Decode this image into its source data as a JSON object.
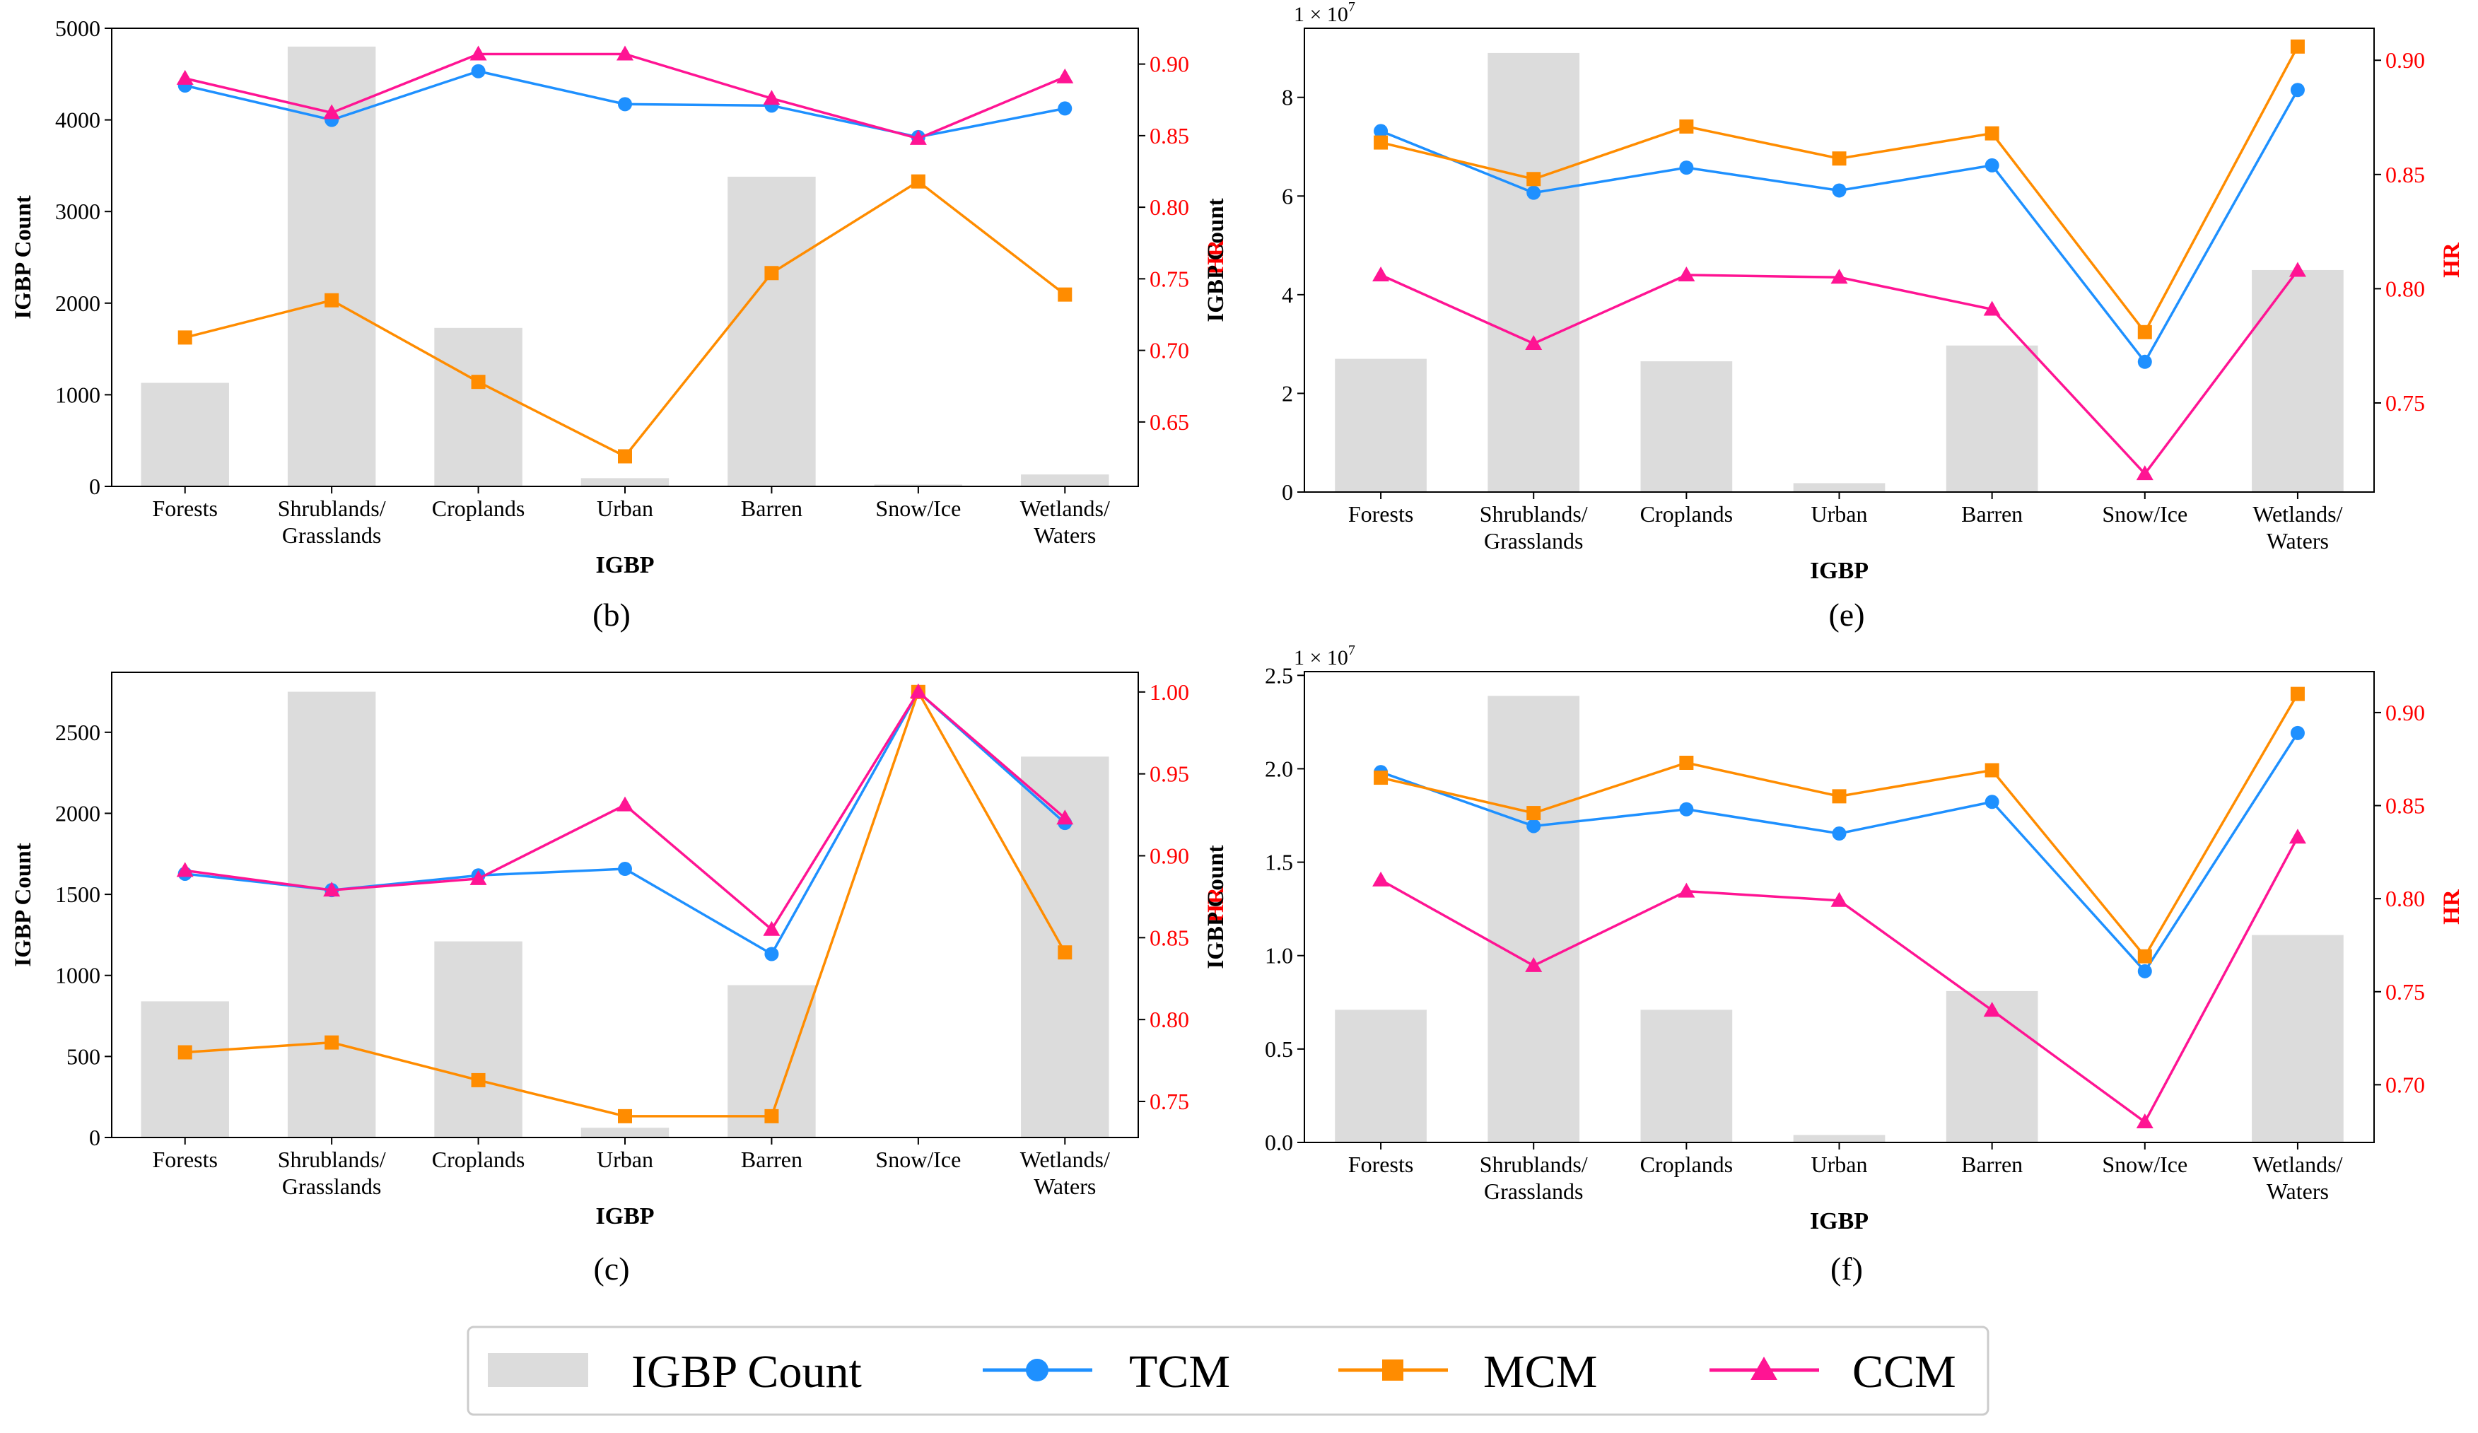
{
  "colors": {
    "bar": "#dcdcdc",
    "tcm": "#1e90ff",
    "mcm": "#ff8c00",
    "ccm": "#ff1493",
    "hr_axis": "#ff0000",
    "axis": "#000000"
  },
  "legend": {
    "items": [
      {
        "key": "bar",
        "label": "IGBP Count",
        "marker": "rect"
      },
      {
        "key": "tcm",
        "label": "TCM",
        "marker": "circle"
      },
      {
        "key": "mcm",
        "label": "MCM",
        "marker": "square"
      },
      {
        "key": "ccm",
        "label": "CCM",
        "marker": "triangle"
      }
    ]
  },
  "chart_data": [
    {
      "panel": "(b)",
      "type": "bar+line",
      "categories": [
        "Forests",
        "Shrublands/\nGrasslands",
        "Croplands",
        "Urban",
        "Barren",
        "Snow/Ice",
        "Wetlands/\nWaters"
      ],
      "xlabel": "IGBP",
      "ylabel_left": "IGBP Count",
      "ylabel_right": "HR",
      "left_multiplier": "",
      "ylim_left": [
        0,
        5000
      ],
      "left_ticks": [
        0,
        1000,
        2000,
        3000,
        4000,
        5000
      ],
      "left_tick_labels": [
        "0",
        "1000",
        "2000",
        "3000",
        "4000",
        "5000"
      ],
      "ylim_right": [
        0.605,
        0.925
      ],
      "right_ticks": [
        0.65,
        0.7,
        0.75,
        0.8,
        0.85,
        0.9
      ],
      "right_tick_labels": [
        "0.65",
        "0.70",
        "0.75",
        "0.80",
        "0.85",
        "0.90"
      ],
      "bars": [
        1130,
        4800,
        1730,
        90,
        3380,
        20,
        130
      ],
      "series": [
        {
          "name": "TCM",
          "key": "tcm",
          "marker": "circle",
          "values": [
            0.885,
            0.861,
            0.895,
            0.872,
            0.871,
            0.849,
            0.869
          ]
        },
        {
          "name": "MCM",
          "key": "mcm",
          "marker": "square",
          "values": [
            0.709,
            0.735,
            0.678,
            0.626,
            0.754,
            0.818,
            0.739
          ]
        },
        {
          "name": "CCM",
          "key": "ccm",
          "marker": "triangle",
          "values": [
            0.89,
            0.866,
            0.907,
            0.907,
            0.876,
            0.848,
            0.891
          ]
        }
      ]
    },
    {
      "panel": "(e)",
      "type": "bar+line",
      "categories": [
        "Forests",
        "Shrublands/\nGrasslands",
        "Croplands",
        "Urban",
        "Barren",
        "Snow/Ice",
        "Wetlands/\nWaters"
      ],
      "xlabel": "IGBP",
      "ylabel_left": "IGBP Count",
      "ylabel_right": "HR",
      "left_multiplier": "1 × 10",
      "left_multiplier_exp": "7",
      "ylim_left": [
        0,
        9.4
      ],
      "left_ticks": [
        0,
        2,
        4,
        6,
        8
      ],
      "left_tick_labels": [
        "0",
        "2",
        "4",
        "6",
        "8"
      ],
      "ylim_right": [
        0.711,
        0.914
      ],
      "right_ticks": [
        0.75,
        0.8,
        0.85,
        0.9
      ],
      "right_tick_labels": [
        "0.75",
        "0.80",
        "0.85",
        "0.90"
      ],
      "bars": [
        2.7,
        8.9,
        2.65,
        0.18,
        2.97,
        0.0,
        4.5
      ],
      "series": [
        {
          "name": "TCM",
          "key": "tcm",
          "marker": "circle",
          "values": [
            0.869,
            0.842,
            0.853,
            0.843,
            0.854,
            0.768,
            0.887
          ]
        },
        {
          "name": "MCM",
          "key": "mcm",
          "marker": "square",
          "values": [
            0.864,
            0.848,
            0.871,
            0.857,
            0.868,
            0.781,
            0.906
          ]
        },
        {
          "name": "CCM",
          "key": "ccm",
          "marker": "triangle",
          "values": [
            0.806,
            0.776,
            0.806,
            0.805,
            0.791,
            0.719,
            0.808
          ]
        }
      ]
    },
    {
      "panel": "(c)",
      "type": "bar+line",
      "categories": [
        "Forests",
        "Shrublands/\nGrasslands",
        "Croplands",
        "Urban",
        "Barren",
        "Snow/Ice",
        "Wetlands/\nWaters"
      ],
      "xlabel": "IGBP",
      "ylabel_left": "IGBP Count",
      "ylabel_right": "HR",
      "left_multiplier": "",
      "ylim_left": [
        0,
        2870
      ],
      "left_ticks": [
        0,
        500,
        1000,
        1500,
        2000,
        2500
      ],
      "left_tick_labels": [
        "0",
        "500",
        "1000",
        "1500",
        "2000",
        "2500"
      ],
      "ylim_right": [
        0.728,
        1.012
      ],
      "right_ticks": [
        0.75,
        0.8,
        0.85,
        0.9,
        0.95,
        1.0
      ],
      "right_tick_labels": [
        "0.75",
        "0.80",
        "0.85",
        "0.90",
        "0.95",
        "1.00"
      ],
      "bars": [
        840,
        2750,
        1210,
        60,
        940,
        0,
        2350
      ],
      "series": [
        {
          "name": "TCM",
          "key": "tcm",
          "marker": "circle",
          "values": [
            0.889,
            0.879,
            0.888,
            0.892,
            0.84,
            1.0,
            0.92
          ]
        },
        {
          "name": "MCM",
          "key": "mcm",
          "marker": "square",
          "values": [
            0.78,
            0.786,
            0.763,
            0.741,
            0.741,
            1.0,
            0.841
          ]
        },
        {
          "name": "CCM",
          "key": "ccm",
          "marker": "triangle",
          "values": [
            0.891,
            0.879,
            0.886,
            0.931,
            0.855,
            1.0,
            0.923
          ]
        }
      ]
    },
    {
      "panel": "(f)",
      "type": "bar+line",
      "categories": [
        "Forests",
        "Shrublands/\nGrasslands",
        "Croplands",
        "Urban",
        "Barren",
        "Snow/Ice",
        "Wetlands/\nWaters"
      ],
      "xlabel": "IGBP",
      "ylabel_left": "IGBP Count",
      "ylabel_right": "HR",
      "left_multiplier": "1 × 10",
      "left_multiplier_exp": "7",
      "ylim_left": [
        0,
        2.52
      ],
      "left_ticks": [
        0.0,
        0.5,
        1.0,
        1.5,
        2.0,
        2.5
      ],
      "left_tick_labels": [
        "0.0",
        "0.5",
        "1.0",
        "1.5",
        "2.0",
        "2.5"
      ],
      "ylim_right": [
        0.669,
        0.922
      ],
      "right_ticks": [
        0.7,
        0.75,
        0.8,
        0.85,
        0.9
      ],
      "right_tick_labels": [
        "0.70",
        "0.75",
        "0.80",
        "0.85",
        "0.90"
      ],
      "bars": [
        0.71,
        2.39,
        0.71,
        0.04,
        0.81,
        0.0,
        1.11
      ],
      "series": [
        {
          "name": "TCM",
          "key": "tcm",
          "marker": "circle",
          "values": [
            0.868,
            0.839,
            0.848,
            0.835,
            0.852,
            0.761,
            0.889
          ]
        },
        {
          "name": "MCM",
          "key": "mcm",
          "marker": "square",
          "values": [
            0.865,
            0.846,
            0.873,
            0.855,
            0.869,
            0.769,
            0.91
          ]
        },
        {
          "name": "CCM",
          "key": "ccm",
          "marker": "triangle",
          "values": [
            0.81,
            0.764,
            0.804,
            0.799,
            0.74,
            0.68,
            0.833
          ]
        }
      ]
    }
  ]
}
